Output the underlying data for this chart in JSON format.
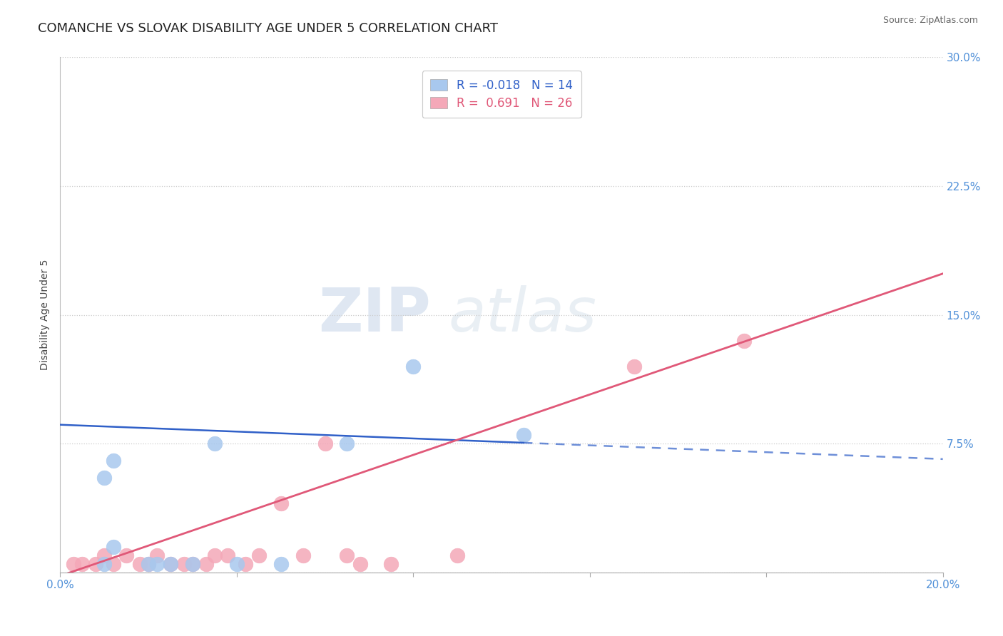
{
  "title": "COMANCHE VS SLOVAK DISABILITY AGE UNDER 5 CORRELATION CHART",
  "source": "Source: ZipAtlas.com",
  "ylabel": "Disability Age Under 5",
  "xlim": [
    0.0,
    0.2
  ],
  "ylim": [
    0.0,
    0.3
  ],
  "xticks": [
    0.0,
    0.04,
    0.08,
    0.12,
    0.16,
    0.2
  ],
  "yticks": [
    0.0,
    0.075,
    0.15,
    0.225,
    0.3
  ],
  "comanche_R": -0.018,
  "comanche_N": 14,
  "slovak_R": 0.691,
  "slovak_N": 26,
  "comanche_color": "#a8c8ee",
  "slovak_color": "#f4a8b8",
  "comanche_line_color": "#3060c8",
  "slovak_line_color": "#e05878",
  "background_color": "#ffffff",
  "grid_color": "#cccccc",
  "watermark_zip": "ZIP",
  "watermark_atlas": "atlas",
  "comanche_x": [
    0.01,
    0.012,
    0.01,
    0.012,
    0.02,
    0.022,
    0.025,
    0.03,
    0.035,
    0.04,
    0.05,
    0.065,
    0.08,
    0.105
  ],
  "comanche_y": [
    0.005,
    0.015,
    0.055,
    0.065,
    0.005,
    0.005,
    0.005,
    0.005,
    0.075,
    0.005,
    0.005,
    0.075,
    0.12,
    0.08
  ],
  "slovak_x": [
    0.003,
    0.005,
    0.008,
    0.01,
    0.012,
    0.015,
    0.018,
    0.02,
    0.022,
    0.025,
    0.028,
    0.03,
    0.033,
    0.035,
    0.038,
    0.042,
    0.045,
    0.05,
    0.055,
    0.06,
    0.065,
    0.068,
    0.075,
    0.09,
    0.13,
    0.155
  ],
  "slovak_y": [
    0.005,
    0.005,
    0.005,
    0.01,
    0.005,
    0.01,
    0.005,
    0.005,
    0.01,
    0.005,
    0.005,
    0.005,
    0.005,
    0.01,
    0.01,
    0.005,
    0.01,
    0.04,
    0.01,
    0.075,
    0.01,
    0.005,
    0.005,
    0.01,
    0.12,
    0.135
  ],
  "title_fontsize": 13,
  "axis_label_fontsize": 10,
  "tick_fontsize": 11,
  "legend_fontsize": 12,
  "right_tick_color": "#5090d8"
}
